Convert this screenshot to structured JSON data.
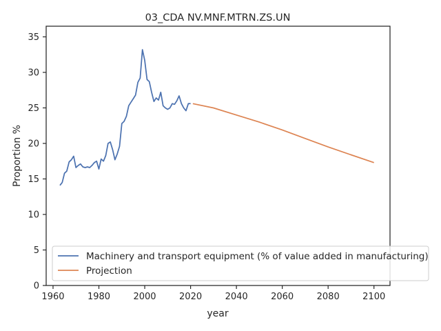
{
  "chart_data": {
    "type": "line",
    "title": "03_CDA NV.MNF.MTRN.ZS.UN",
    "xlabel": "year",
    "ylabel": "Proportion %",
    "xlim": [
      1957,
      2107
    ],
    "ylim": [
      0,
      36.5
    ],
    "xticks": [
      1960,
      1980,
      2000,
      2020,
      2040,
      2060,
      2080,
      2100
    ],
    "yticks": [
      0,
      5,
      10,
      15,
      20,
      25,
      30,
      35
    ],
    "grid": false,
    "legend_position": "lower-right",
    "series": [
      {
        "name": "Machinery and transport equipment (% of value added in manufacturing)",
        "color": "#4c72b0",
        "x": [
          1963,
          1964,
          1965,
          1966,
          1967,
          1968,
          1969,
          1970,
          1971,
          1972,
          1973,
          1974,
          1975,
          1976,
          1977,
          1978,
          1979,
          1980,
          1981,
          1982,
          1983,
          1984,
          1985,
          1986,
          1987,
          1988,
          1989,
          1990,
          1991,
          1992,
          1993,
          1994,
          1995,
          1996,
          1997,
          1998,
          1999,
          2000,
          2001,
          2002,
          2003,
          2004,
          2005,
          2006,
          2007,
          2008,
          2009,
          2010,
          2011,
          2012,
          2013,
          2014,
          2015,
          2016,
          2017,
          2018,
          2019,
          2020
        ],
        "y": [
          14.1,
          14.5,
          15.8,
          16.1,
          17.4,
          17.7,
          18.2,
          16.6,
          16.9,
          17.1,
          16.7,
          16.6,
          16.7,
          16.6,
          16.9,
          17.3,
          17.5,
          16.4,
          17.8,
          17.5,
          18.3,
          20.0,
          20.2,
          19.1,
          17.7,
          18.5,
          19.6,
          22.8,
          23.1,
          23.8,
          25.3,
          25.8,
          26.3,
          26.8,
          28.6,
          29.2,
          33.2,
          31.7,
          29.0,
          28.7,
          27.2,
          25.9,
          26.4,
          26.1,
          27.2,
          25.3,
          25.0,
          24.8,
          25.0,
          25.6,
          25.5,
          26.0,
          26.7,
          25.6,
          25.0,
          24.6,
          25.6,
          25.6
        ]
      },
      {
        "name": "Projection",
        "color": "#dd8452",
        "x": [
          2021,
          2030,
          2040,
          2050,
          2060,
          2070,
          2080,
          2090,
          2100
        ],
        "y": [
          25.6,
          25.0,
          24.0,
          23.0,
          21.9,
          20.7,
          19.5,
          18.4,
          17.3
        ]
      }
    ]
  }
}
